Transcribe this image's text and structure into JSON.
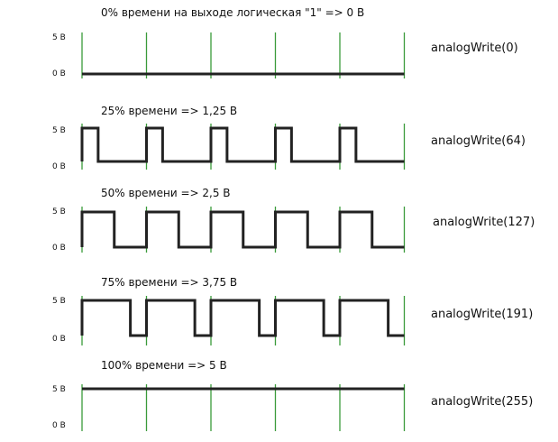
{
  "colors": {
    "signal": "#222222",
    "period_marker": "#3a9a3a",
    "text": "#111111"
  },
  "signal_periods": 5,
  "panels": [
    {
      "caption": "0% времени на выходе логическая \"1\"    =>    0 В",
      "high_label": "5 В",
      "low_label": "0 В",
      "function": "analogWrite(0)",
      "duty": 0
    },
    {
      "caption": "25% времени  =>   1,25 В",
      "high_label": "5 В",
      "low_label": "0 В",
      "function": "analogWrite(64)",
      "duty": 0.25
    },
    {
      "caption": "50% времени  =>  2,5 В",
      "high_label": "5 В",
      "low_label": "0 В",
      "function": "analogWrite(127)",
      "duty": 0.5
    },
    {
      "caption": "75% времени  =>  3,75 В",
      "high_label": "5 В",
      "low_label": "0 В",
      "function": "analogWrite(191)",
      "duty": 0.75
    },
    {
      "caption": "100% времени  =>  5 В",
      "high_label": "5 В",
      "low_label": "0 В",
      "function": "analogWrite(255)",
      "duty": 1
    }
  ]
}
